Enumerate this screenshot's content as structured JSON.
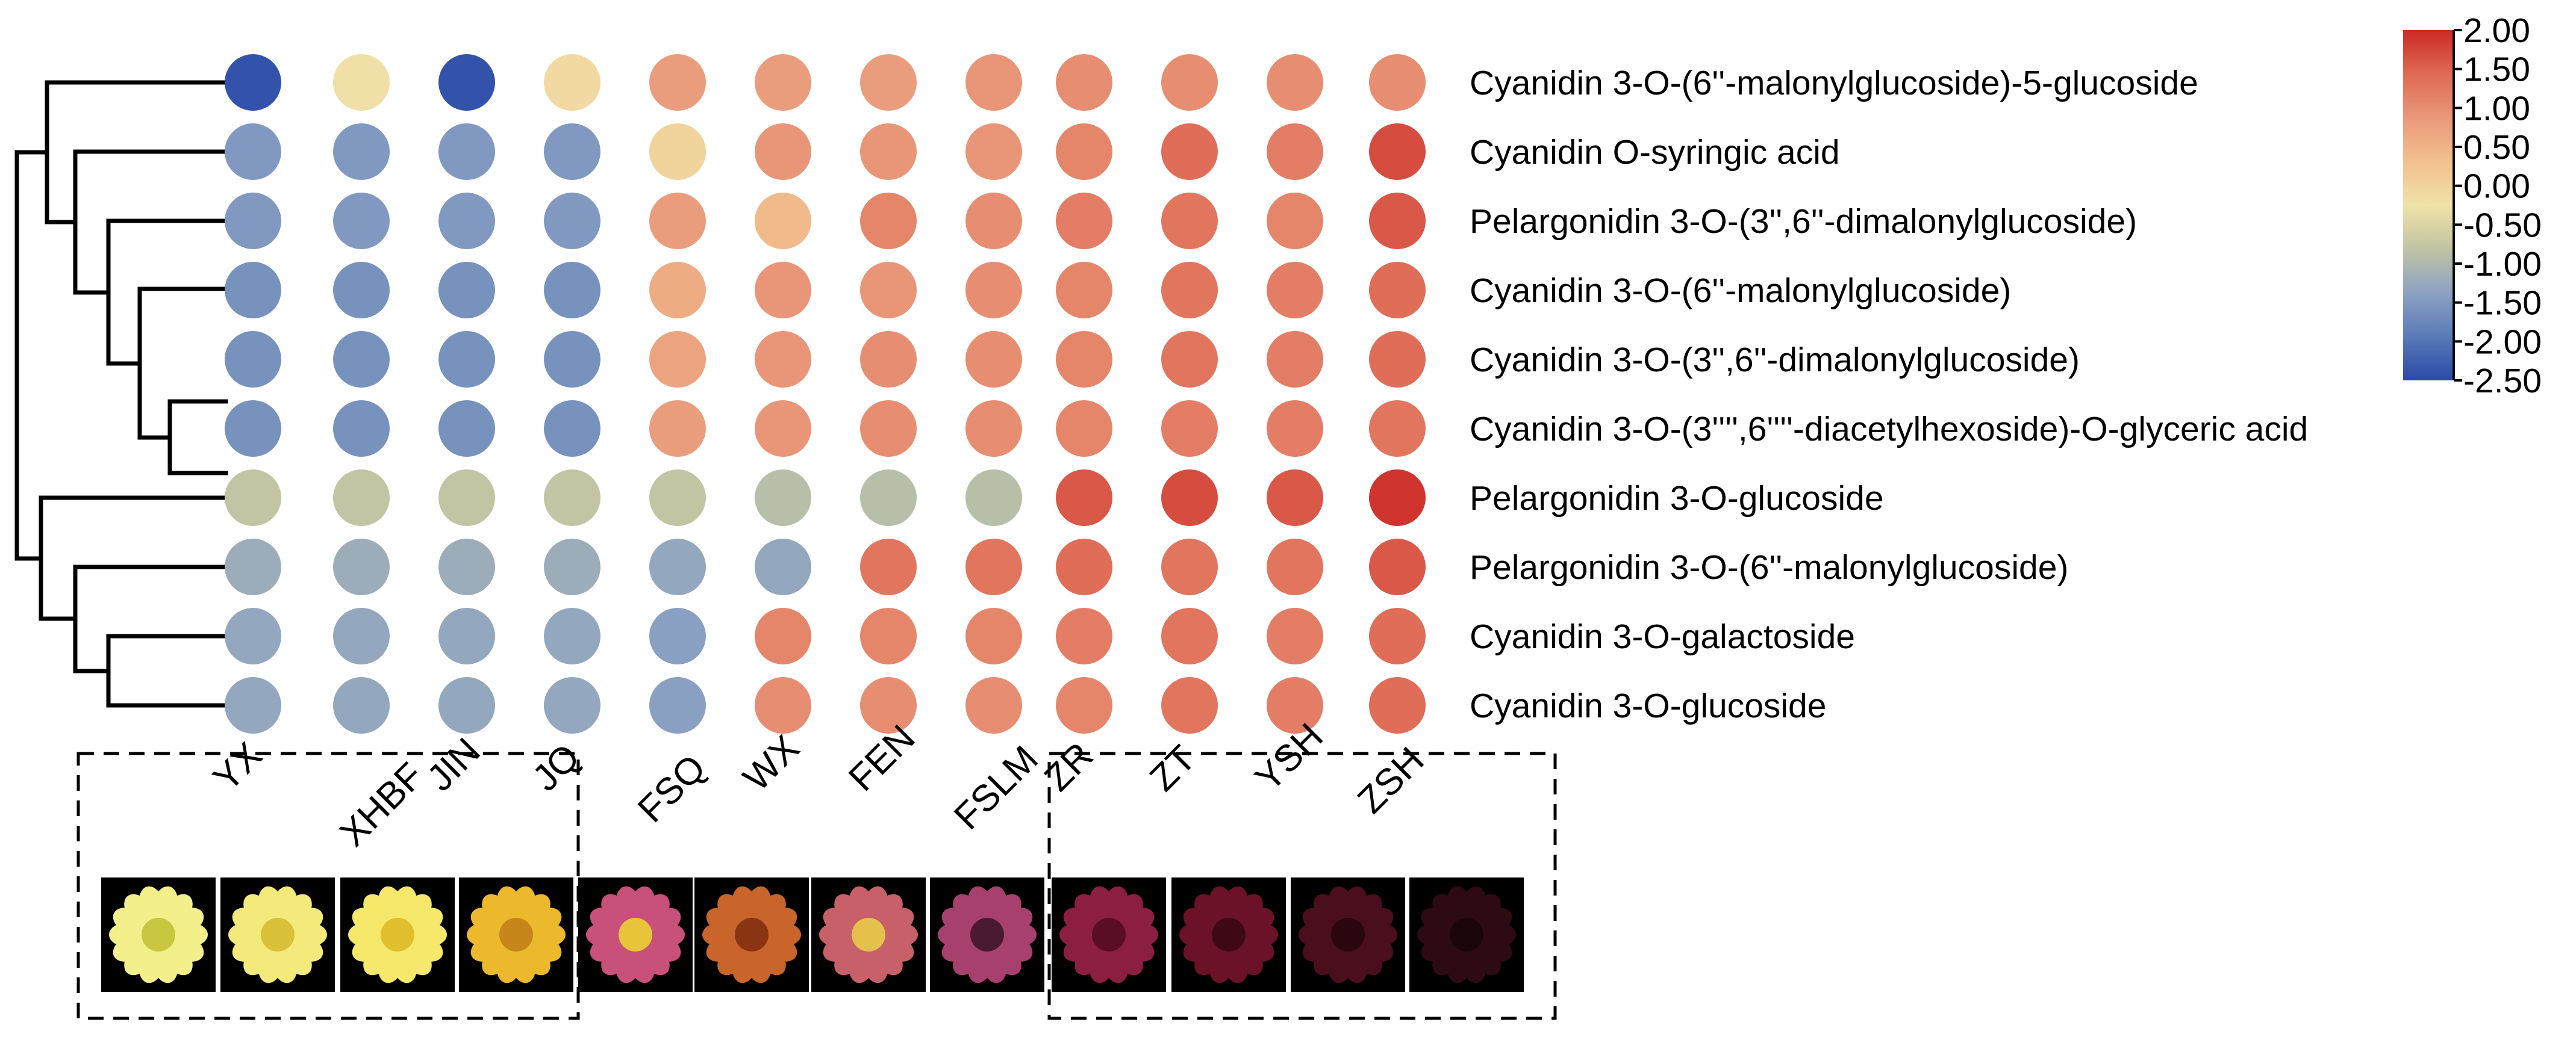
{
  "chart_data": {
    "type": "heatmap",
    "subtype": "bubble-heatmap-with-dendrogram",
    "columns": [
      "YX",
      "XHBF",
      "JIN",
      "JQ",
      "FSQ",
      "WX",
      "FEN",
      "FSLM",
      "ZR",
      "ZT",
      "YSH",
      "ZSH"
    ],
    "rows": [
      "Cyanidin 3-O-(6''-malonylglucoside)-5-glucoside",
      "Cyanidin O-syringic acid",
      "Pelargonidin 3-O-(3'',6''-dimalonylglucoside)",
      "Cyanidin 3-O-(6''-malonylglucoside)",
      "Cyanidin 3-O-(3'',6''-dimalonylglucoside)",
      "Cyanidin 3-O-(3'''',6''''-diacetylhexoside)-O-glyceric acid",
      "Pelargonidin 3-O-glucoside",
      "Pelargonidin 3-O-(6''-malonylglucoside)",
      "Cyanidin 3-O-galactoside",
      "Cyanidin 3-O-glucoside"
    ],
    "values": [
      [
        -2.4,
        -0.2,
        -2.4,
        -0.1,
        0.8,
        0.8,
        0.8,
        0.9,
        1.0,
        1.0,
        1.0,
        1.0
      ],
      [
        -1.5,
        -1.5,
        -1.5,
        -1.5,
        0.0,
        0.9,
        0.9,
        0.9,
        1.1,
        1.4,
        1.2,
        1.7
      ],
      [
        -1.5,
        -1.5,
        -1.5,
        -1.5,
        0.8,
        0.4,
        1.1,
        1.0,
        1.2,
        1.3,
        1.1,
        1.6
      ],
      [
        -1.6,
        -1.6,
        -1.6,
        -1.6,
        0.6,
        0.9,
        0.9,
        1.0,
        1.1,
        1.3,
        1.2,
        1.4
      ],
      [
        -1.6,
        -1.6,
        -1.6,
        -1.6,
        0.7,
        0.9,
        1.0,
        1.0,
        1.1,
        1.3,
        1.2,
        1.4
      ],
      [
        -1.6,
        -1.6,
        -1.6,
        -1.6,
        0.8,
        0.9,
        1.0,
        1.0,
        1.1,
        1.2,
        1.2,
        1.3
      ],
      [
        -0.8,
        -0.8,
        -0.8,
        -0.8,
        -0.8,
        -0.9,
        -0.9,
        -0.9,
        1.6,
        1.7,
        1.6,
        1.9
      ],
      [
        -1.2,
        -1.2,
        -1.2,
        -1.2,
        -1.3,
        -1.3,
        1.3,
        1.3,
        1.4,
        1.3,
        1.3,
        1.6
      ],
      [
        -1.3,
        -1.3,
        -1.3,
        -1.3,
        -1.4,
        1.1,
        1.1,
        1.1,
        1.2,
        1.3,
        1.2,
        1.4
      ],
      [
        -1.3,
        -1.3,
        -1.3,
        -1.3,
        -1.4,
        1.0,
        1.0,
        1.0,
        1.1,
        1.3,
        1.2,
        1.4
      ]
    ],
    "colorbar": {
      "ticks": [
        "2.00",
        "1.50",
        "1.00",
        "0.50",
        "0.00",
        "-0.50",
        "-1.00",
        "-1.50",
        "-2.00",
        "-2.50"
      ],
      "min": -2.5,
      "max": 2.0,
      "colors": [
        "#2a4aa8",
        "#5a7ab8",
        "#8ca2c2",
        "#c0c4a4",
        "#f0e2a8",
        "#f2c08e",
        "#e9987a",
        "#df6a55",
        "#cb2a26"
      ]
    },
    "groups": [
      {
        "name": "yellow",
        "columns": [
          "YX",
          "XHBF",
          "JIN",
          "JQ"
        ],
        "boxed": true
      },
      {
        "name": "pink-orange",
        "columns": [
          "FSQ",
          "WX",
          "FEN",
          "FSLM"
        ],
        "boxed": false
      },
      {
        "name": "dark-red",
        "columns": [
          "ZR",
          "ZT",
          "YSH",
          "ZSH"
        ],
        "boxed": true
      }
    ],
    "flowers": [
      {
        "name": "YX",
        "icon": "flower-photo",
        "petal": "#f3f08c",
        "center": "#c9c640",
        "bg": "#000000"
      },
      {
        "name": "XHBF",
        "icon": "flower-photo",
        "petal": "#f4ea7c",
        "center": "#d9c23a",
        "bg": "#000000"
      },
      {
        "name": "JIN",
        "icon": "flower-photo",
        "petal": "#f6e86a",
        "center": "#e2bf2c",
        "bg": "#000000"
      },
      {
        "name": "JQ",
        "icon": "flower-photo",
        "petal": "#ecb82c",
        "center": "#c7861c",
        "bg": "#000000"
      },
      {
        "name": "FSQ",
        "icon": "flower-photo",
        "petal": "#c9507a",
        "center": "#e8c43a",
        "bg": "#000000"
      },
      {
        "name": "WX",
        "icon": "flower-photo",
        "petal": "#c9642a",
        "center": "#8a3414",
        "bg": "#000000"
      },
      {
        "name": "FEN",
        "icon": "flower-photo",
        "petal": "#c8606a",
        "center": "#e4c04c",
        "bg": "#000000"
      },
      {
        "name": "FSLM",
        "icon": "flower-photo",
        "petal": "#a8406e",
        "center": "#4a1a32",
        "bg": "#000000"
      },
      {
        "name": "ZR",
        "icon": "flower-photo",
        "petal": "#8c1e42",
        "center": "#5a0e26",
        "bg": "#000000"
      },
      {
        "name": "ZT",
        "icon": "flower-photo",
        "petal": "#6c1228",
        "center": "#3e0814",
        "bg": "#000000"
      },
      {
        "name": "YSH",
        "icon": "flower-photo",
        "petal": "#4a0e1c",
        "center": "#2a060e",
        "bg": "#000000"
      },
      {
        "name": "ZSH",
        "icon": "flower-photo",
        "petal": "#2e0a14",
        "center": "#1a050a",
        "bg": "#000000"
      }
    ],
    "dendrogram": {
      "type": "row-hierarchical-clustering",
      "leaf_order": [
        0,
        1,
        2,
        3,
        4,
        5,
        6,
        7,
        8,
        9
      ]
    }
  }
}
